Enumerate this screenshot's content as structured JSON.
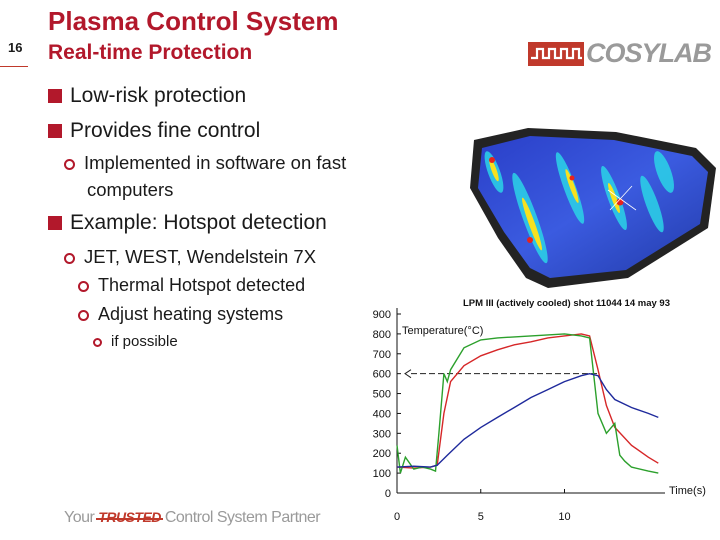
{
  "slide": {
    "number": "16"
  },
  "header": {
    "title": "Plasma Control System",
    "subtitle": "Real-time Protection"
  },
  "logo": {
    "text": "COSYLAB",
    "color": "#c0392b"
  },
  "bullets": [
    {
      "level": 1,
      "text": "Low-risk protection"
    },
    {
      "level": 1,
      "text": "Provides fine control"
    },
    {
      "level": 2,
      "text": "Implemented in software on fast"
    },
    {
      "level": 2,
      "text": "computers"
    },
    {
      "level": 1,
      "text": "Example: Hotspot detection"
    },
    {
      "level": 2,
      "text": "JET, WEST, Wendelstein 7X"
    },
    {
      "level": 3,
      "text": "Thermal Hotspot detected"
    },
    {
      "level": 3,
      "text": "Adjust heating systems"
    },
    {
      "level": 4,
      "text": "if possible"
    }
  ],
  "chart_data": {
    "type": "line",
    "title": "LPM III (actively cooled)  shot 11044 14 may 93",
    "annotation": "Temperature(°C)",
    "xlabel": "Time(s)",
    "x_ticks": [
      "0",
      "5",
      "10"
    ],
    "y_ticks": [
      "0",
      "100",
      "200",
      "300",
      "400",
      "500",
      "600",
      "700",
      "800",
      "900"
    ],
    "xlim": [
      0,
      16
    ],
    "ylim": [
      0,
      900
    ],
    "threshold": 600,
    "series": [
      {
        "color": "#d62728",
        "points": [
          [
            0,
            130
          ],
          [
            1,
            125
          ],
          [
            2,
            130
          ],
          [
            2.4,
            140
          ],
          [
            2.8,
            400
          ],
          [
            3.2,
            560
          ],
          [
            4,
            640
          ],
          [
            5,
            690
          ],
          [
            6,
            720
          ],
          [
            7,
            745
          ],
          [
            8,
            760
          ],
          [
            9,
            780
          ],
          [
            10,
            790
          ],
          [
            11,
            800
          ],
          [
            11.5,
            790
          ],
          [
            12,
            620
          ],
          [
            12.5,
            440
          ],
          [
            13,
            330
          ],
          [
            14,
            240
          ],
          [
            15,
            180
          ],
          [
            15.6,
            150
          ]
        ]
      },
      {
        "color": "#2ca02c",
        "points": [
          [
            0,
            240
          ],
          [
            0.2,
            100
          ],
          [
            0.5,
            180
          ],
          [
            1,
            120
          ],
          [
            1.5,
            130
          ],
          [
            2,
            120
          ],
          [
            2.3,
            110
          ],
          [
            2.5,
            300
          ],
          [
            2.8,
            600
          ],
          [
            3,
            560
          ],
          [
            3.2,
            620
          ],
          [
            4,
            730
          ],
          [
            5,
            770
          ],
          [
            6,
            780
          ],
          [
            7,
            785
          ],
          [
            8,
            790
          ],
          [
            9,
            795
          ],
          [
            10,
            800
          ],
          [
            11,
            790
          ],
          [
            11.5,
            780
          ],
          [
            12,
            400
          ],
          [
            12.5,
            300
          ],
          [
            13,
            350
          ],
          [
            13.3,
            190
          ],
          [
            13.6,
            160
          ],
          [
            14,
            130
          ],
          [
            15,
            110
          ],
          [
            15.6,
            100
          ]
        ]
      },
      {
        "color": "#1f2a9c",
        "points": [
          [
            0,
            130
          ],
          [
            1,
            135
          ],
          [
            2,
            130
          ],
          [
            2.4,
            140
          ],
          [
            3,
            190
          ],
          [
            4,
            270
          ],
          [
            5,
            330
          ],
          [
            6,
            380
          ],
          [
            7,
            430
          ],
          [
            8,
            480
          ],
          [
            9,
            520
          ],
          [
            10,
            560
          ],
          [
            11,
            590
          ],
          [
            11.5,
            600
          ],
          [
            12,
            590
          ],
          [
            12.5,
            520
          ],
          [
            13,
            470
          ],
          [
            14,
            430
          ],
          [
            15,
            400
          ],
          [
            15.6,
            380
          ]
        ]
      }
    ]
  }
}
